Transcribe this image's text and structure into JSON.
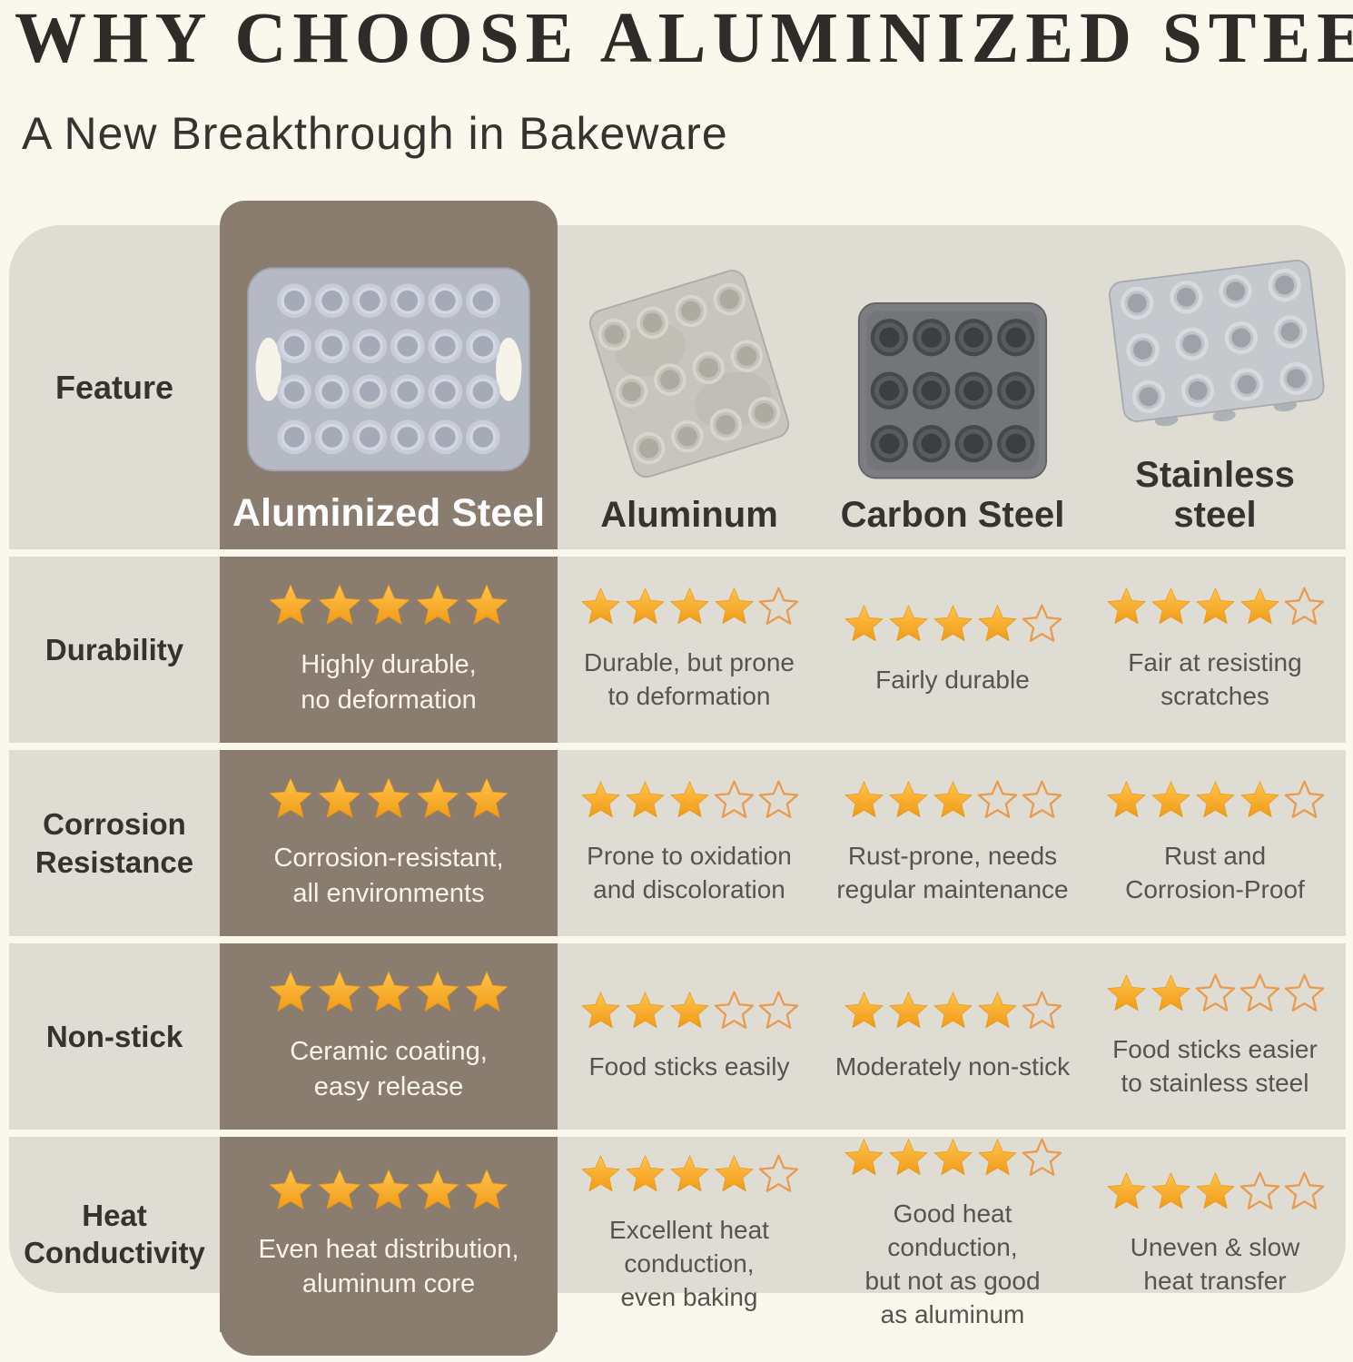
{
  "page": {
    "title": "WHY CHOOSE ALUMINIZED STEEL?",
    "subtitle": "A New Breakthrough in Bakeware"
  },
  "colors": {
    "page_bg": "#faf8ec",
    "band_bg": "#dfdcd3",
    "highlight_bg": "#8a7d70",
    "title_color": "#2d2c29",
    "text_dark": "#34332f",
    "text_gray": "#57544f",
    "text_light": "#f8f4ea",
    "star_gradient_top": "#ffc44c",
    "star_gradient_bottom": "#f19b17",
    "star_edge": "#e8930f",
    "star_outline": "#e99a4d"
  },
  "table": {
    "feature_header": "Feature",
    "rating_max": 5,
    "columns": [
      {
        "label": "Aluminized Steel",
        "highlight": true,
        "pan_icon": "muffin-pan-24-cup-aluminized-icon"
      },
      {
        "label": "Aluminum",
        "highlight": false,
        "pan_icon": "muffin-pan-12-cup-aluminum-icon"
      },
      {
        "label": "Carbon Steel",
        "highlight": false,
        "pan_icon": "muffin-pan-12-cup-carbon-steel-icon"
      },
      {
        "label": "Stainless\nsteel",
        "highlight": false,
        "pan_icon": "muffin-pan-12-cup-stainless-steel-icon"
      }
    ],
    "rows": [
      {
        "feature": "Durability",
        "cells": [
          {
            "stars": 5,
            "note": "Highly durable,\nno deformation"
          },
          {
            "stars": 4,
            "note": "Durable, but prone\nto deformation"
          },
          {
            "stars": 4,
            "note": "Fairly durable"
          },
          {
            "stars": 4,
            "note": "Fair at resisting\nscratches"
          }
        ]
      },
      {
        "feature": "Corrosion\nResistance",
        "cells": [
          {
            "stars": 5,
            "note": "Corrosion-resistant,\nall environments"
          },
          {
            "stars": 3,
            "note": "Prone to oxidation\nand discoloration"
          },
          {
            "stars": 3,
            "note": "Rust-prone, needs\nregular maintenance"
          },
          {
            "stars": 4,
            "note": "Rust and\nCorrosion-Proof"
          }
        ]
      },
      {
        "feature": "Non-stick",
        "cells": [
          {
            "stars": 5,
            "note": "Ceramic coating,\neasy release"
          },
          {
            "stars": 3,
            "note": "Food sticks easily"
          },
          {
            "stars": 4,
            "note": "Moderately non-stick"
          },
          {
            "stars": 2,
            "note": "Food sticks easier\nto stainless steel"
          }
        ]
      },
      {
        "feature": "Heat\nConductivity",
        "cells": [
          {
            "stars": 5,
            "note": "Even heat distribution,\naluminum core"
          },
          {
            "stars": 4,
            "note": "Excellent heat\nconduction,\neven baking"
          },
          {
            "stars": 4,
            "note": "Good heat conduction,\nbut not as good\nas aluminum"
          },
          {
            "stars": 3,
            "note": "Uneven & slow\nheat transfer"
          }
        ]
      }
    ]
  },
  "chart_data": {
    "type": "table",
    "title": "WHY CHOOSE ALUMINIZED STEEL?",
    "subtitle": "A New Breakthrough in Bakeware",
    "categories": [
      "Durability",
      "Corrosion Resistance",
      "Non-stick",
      "Heat Conductivity"
    ],
    "rating_scale": [
      0,
      5
    ],
    "series": [
      {
        "name": "Aluminized Steel",
        "values": [
          5,
          5,
          5,
          5
        ],
        "notes": [
          "Highly durable, no deformation",
          "Corrosion-resistant, all environments",
          "Ceramic coating, easy release",
          "Even heat distribution, aluminum core"
        ]
      },
      {
        "name": "Aluminum",
        "values": [
          4,
          3,
          3,
          4
        ],
        "notes": [
          "Durable, but prone to deformation",
          "Prone to oxidation and discoloration",
          "Food sticks easily",
          "Excellent heat conduction, even baking"
        ]
      },
      {
        "name": "Carbon Steel",
        "values": [
          4,
          3,
          4,
          4
        ],
        "notes": [
          "Fairly durable",
          "Rust-prone, needs regular maintenance",
          "Moderately non-stick",
          "Good heat conduction, but not as good as aluminum"
        ]
      },
      {
        "name": "Stainless steel",
        "values": [
          4,
          4,
          2,
          3
        ],
        "notes": [
          "Fair at resisting scratches",
          "Rust and Corrosion-Proof",
          "Food sticks easier to stainless steel",
          "Uneven & slow heat transfer"
        ]
      }
    ]
  }
}
